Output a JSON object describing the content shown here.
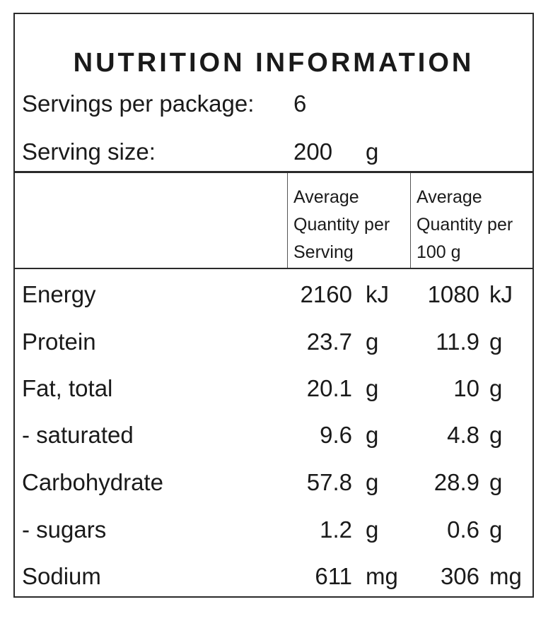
{
  "title": "NUTRITION INFORMATION",
  "servings_per_package": {
    "label": "Servings per package:",
    "value": "6"
  },
  "serving_size": {
    "label": "Serving size:",
    "value": "200",
    "unit": "g"
  },
  "columns": [
    {
      "lines": [
        "Average",
        "Quantity per",
        "Serving"
      ]
    },
    {
      "lines": [
        "Average",
        "Quantity per",
        "100 g"
      ]
    }
  ],
  "nutrients": [
    {
      "name": "Energy",
      "per_serving": "2160",
      "per_serving_unit": "kJ",
      "per_100g": "1080",
      "per_100g_unit": "kJ"
    },
    {
      "name": "Protein",
      "per_serving": "23.7",
      "per_serving_unit": "g",
      "per_100g": "11.9",
      "per_100g_unit": "g"
    },
    {
      "name": "Fat, total",
      "per_serving": "20.1",
      "per_serving_unit": "g",
      "per_100g": "10",
      "per_100g_unit": "g"
    },
    {
      "name": "- saturated",
      "per_serving": "9.6",
      "per_serving_unit": "g",
      "per_100g": "4.8",
      "per_100g_unit": "g"
    },
    {
      "name": "Carbohydrate",
      "per_serving": "57.8",
      "per_serving_unit": "g",
      "per_100g": "28.9",
      "per_100g_unit": "g"
    },
    {
      "name": "- sugars",
      "per_serving": "1.2",
      "per_serving_unit": "g",
      "per_100g": "0.6",
      "per_100g_unit": "g"
    },
    {
      "name": "Sodium",
      "per_serving": "611",
      "per_serving_unit": "mg",
      "per_100g": "306",
      "per_100g_unit": "mg"
    }
  ]
}
